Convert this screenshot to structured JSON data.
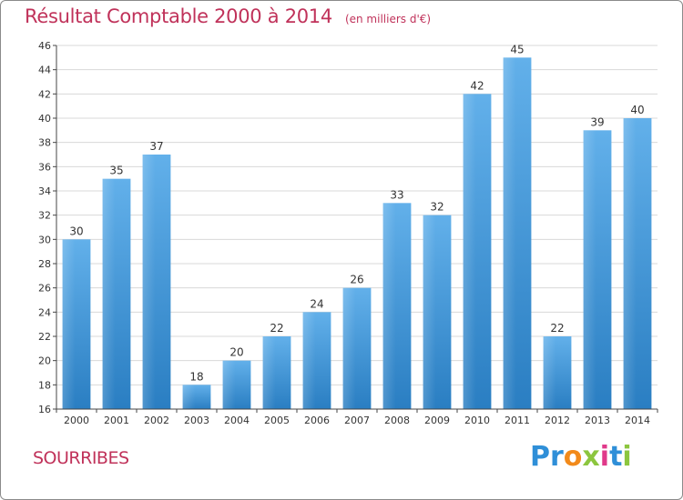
{
  "header": {
    "title": "Résultat Comptable 2000 à 2014",
    "unit": "(en milliers d'€)"
  },
  "footer": {
    "town": "SOURRIBES",
    "brand": "Proxiti",
    "brand_letters": [
      {
        "ch": "P",
        "color": "#2f8fd8"
      },
      {
        "ch": "r",
        "color": "#2f8fd8"
      },
      {
        "ch": "o",
        "color": "#f28a1a"
      },
      {
        "ch": "x",
        "color": "#8cc63f"
      },
      {
        "ch": "i",
        "color": "#e0398a"
      },
      {
        "ch": "t",
        "color": "#2f8fd8"
      },
      {
        "ch": "i",
        "color": "#8cc63f"
      }
    ]
  },
  "colors": {
    "accent": "#c0325a",
    "bar_light": "#62b0ea",
    "bar_dark": "#2a7ec2",
    "grid": "#d8d8d8",
    "axis": "#444444"
  },
  "chart_data": {
    "type": "bar",
    "title": "Résultat Comptable 2000 à 2014",
    "subtitle": "(en milliers d'€)",
    "xlabel": "",
    "ylabel": "",
    "categories": [
      "2000",
      "2001",
      "2002",
      "2003",
      "2004",
      "2005",
      "2006",
      "2007",
      "2008",
      "2009",
      "2010",
      "2011",
      "2012",
      "2013",
      "2014"
    ],
    "values": [
      30,
      35,
      37,
      18,
      20,
      22,
      24,
      26,
      33,
      32,
      42,
      45,
      22,
      39,
      40
    ],
    "ylim": [
      16,
      46
    ],
    "yticks": [
      16,
      18,
      20,
      22,
      24,
      26,
      28,
      30,
      32,
      34,
      36,
      38,
      40,
      42,
      44,
      46
    ],
    "grid": true,
    "legend": "none",
    "data_labels": true
  }
}
